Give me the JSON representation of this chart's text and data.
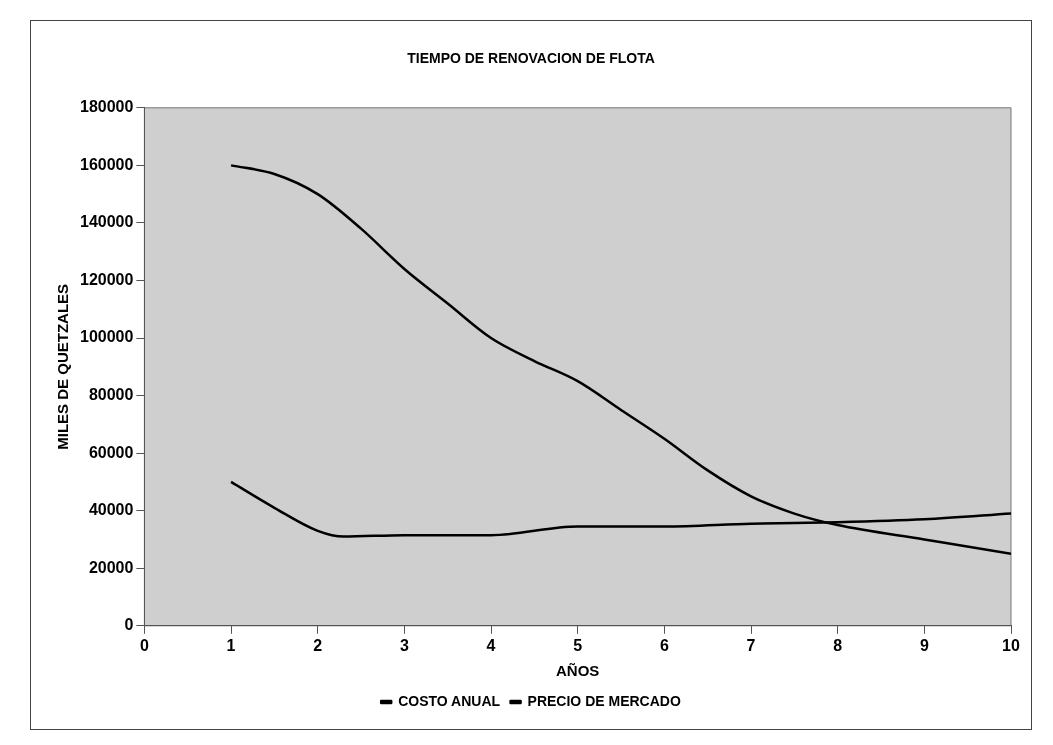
{
  "chart_data": {
    "type": "line",
    "title": "TIEMPO DE RENOVACION DE FLOTA",
    "xlabel": "AÑOS",
    "ylabel": "MILES DE QUETZALES",
    "series": [
      {
        "name": "COSTO ANUAL",
        "color": "#000000",
        "x": [
          1,
          1.5,
          2,
          2.3,
          3,
          4,
          5,
          6,
          7,
          8,
          9,
          10
        ],
        "values": [
          50000,
          41000,
          33000,
          31000,
          31500,
          31500,
          34500,
          34500,
          35500,
          36000,
          37000,
          39000
        ]
      },
      {
        "name": "PRECIO DE MERCADO",
        "color": "#000000",
        "x": [
          1,
          1.5,
          2,
          2.5,
          3,
          3.5,
          4,
          4.5,
          5,
          5.5,
          6,
          6.5,
          7,
          7.5,
          8,
          9,
          10
        ],
        "values": [
          160000,
          157000,
          150000,
          138000,
          124000,
          112000,
          100000,
          92000,
          85000,
          75000,
          65000,
          54000,
          45000,
          39000,
          35000,
          30000,
          25000
        ]
      }
    ],
    "xlim": [
      0,
      10
    ],
    "xticks": [
      0,
      1,
      2,
      3,
      4,
      5,
      6,
      7,
      8,
      9,
      10
    ],
    "ylim": [
      0,
      180000
    ],
    "yticks": [
      0,
      20000,
      40000,
      60000,
      80000,
      100000,
      120000,
      140000,
      160000,
      180000
    ],
    "grid": false,
    "legend": "bottom",
    "marker": "none",
    "line_style": "solid"
  }
}
